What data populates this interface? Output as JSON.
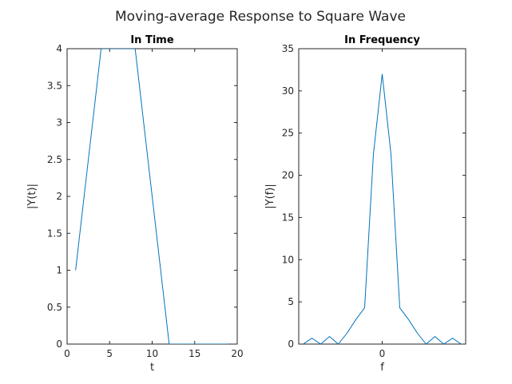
{
  "figure": {
    "title": "Moving-average Response to Square Wave"
  },
  "chart_data": [
    {
      "type": "line",
      "title": "In Time",
      "xlabel": "t",
      "ylabel": "|Y(t)|",
      "xlim": [
        0,
        20
      ],
      "ylim": [
        0,
        4
      ],
      "xticks": [
        0,
        5,
        10,
        15,
        20
      ],
      "xtick_labels": [
        "0",
        "5",
        "10",
        "15",
        "20"
      ],
      "yticks": [
        0,
        0.5,
        1,
        1.5,
        2,
        2.5,
        3,
        3.5,
        4
      ],
      "ytick_labels": [
        "0",
        "0.5",
        "1",
        "1.5",
        "2",
        "2.5",
        "3",
        "3.5",
        "4"
      ],
      "grid": false,
      "color": "#0072bd",
      "series": [
        {
          "x": [
            1,
            2,
            3,
            4,
            5,
            6,
            7,
            8,
            9,
            10,
            11,
            12,
            13,
            14,
            15,
            16,
            17,
            18,
            19
          ],
          "values": [
            1,
            2,
            3,
            4,
            4,
            4,
            4,
            4,
            3,
            2,
            1,
            0,
            0,
            0,
            0,
            0,
            0,
            0,
            0
          ]
        }
      ]
    },
    {
      "type": "line",
      "title": "In Frequency",
      "xlabel": "f",
      "ylabel": "|Y(f)|",
      "xlim": [
        -19,
        19
      ],
      "ylim": [
        0,
        35
      ],
      "xticks": [
        0
      ],
      "xtick_labels": [
        "0"
      ],
      "yticks": [
        0,
        5,
        10,
        15,
        20,
        25,
        30,
        35
      ],
      "ytick_labels": [
        "0",
        "5",
        "10",
        "15",
        "20",
        "25",
        "30",
        "35"
      ],
      "grid": false,
      "color": "#0072bd",
      "series": [
        {
          "x": [
            -18,
            -16,
            -14,
            -12,
            -10,
            -8,
            -6,
            -4,
            -2,
            0,
            2,
            4,
            6,
            8,
            10,
            12,
            14,
            16,
            18
          ],
          "values": [
            0.0,
            0.7,
            0.0,
            0.9,
            0.0,
            1.3,
            2.9,
            4.3,
            22.5,
            32.0,
            22.5,
            4.3,
            2.9,
            1.3,
            0.0,
            0.9,
            0.0,
            0.7,
            0.0
          ]
        }
      ]
    }
  ]
}
